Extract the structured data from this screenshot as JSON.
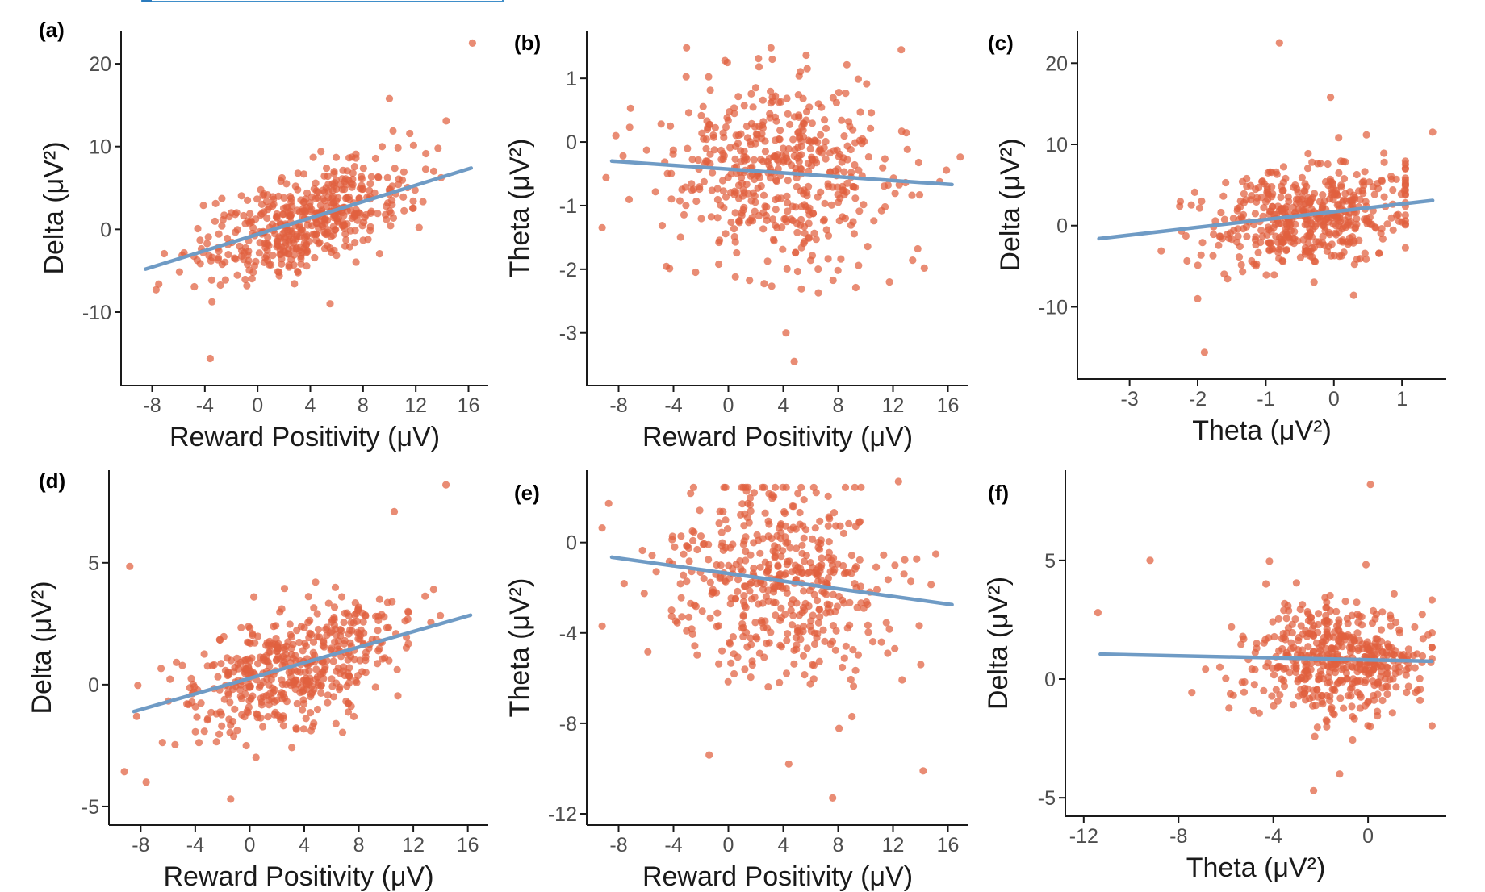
{
  "figure": {
    "colors": {
      "points": "#e0603e",
      "fit_line": "#6f9bc5",
      "axis": "#1a1a1a",
      "header_accent": "#2b7bbd"
    },
    "header_fragment": "cropped banner at top-left (text not legible)"
  },
  "chart_data": [
    {
      "panel_label": "(a)",
      "type": "scatter",
      "xlabel": "Reward Positivity (μV)",
      "ylabel": "Delta (μV²)",
      "xlim": [
        -9.5,
        17.5
      ],
      "ylim": [
        -17.5,
        24
      ],
      "xticks": [
        -8,
        -4,
        0,
        4,
        8,
        12,
        16
      ],
      "xticklabels": [
        "-8",
        "-4",
        "0",
        "4",
        "8",
        "12",
        "16"
      ],
      "yticks": [
        -10,
        0,
        10,
        20
      ],
      "yticklabels": [
        "-10",
        "0",
        "10",
        "20"
      ],
      "grid": false,
      "fit_line": {
        "x": [
          -8.5,
          16.2
        ],
        "y": [
          -4.8,
          7.4
        ]
      },
      "points_summary": {
        "n": 480,
        "x_mean": 3.5,
        "x_sd": 4.0,
        "y_intercept": -0.55,
        "slope": 0.48,
        "residual_sd": 2.8
      },
      "outliers": [
        {
          "x": 16.3,
          "y": 22.5
        },
        {
          "x": -3.6,
          "y": -15.6
        },
        {
          "x": 10.0,
          "y": 15.8
        },
        {
          "x": 5.5,
          "y": -9.0
        },
        {
          "x": -7.7,
          "y": -7.3
        }
      ]
    },
    {
      "panel_label": "(b)",
      "type": "scatter",
      "xlabel": "Reward Positivity (μV)",
      "ylabel": "Theta (μV²)",
      "xlim": [
        -9.5,
        17.5
      ],
      "ylim": [
        -3.65,
        1.75
      ],
      "xticks": [
        -8,
        -4,
        0,
        4,
        8,
        12,
        16
      ],
      "xticklabels": [
        "-8",
        "-4",
        "0",
        "4",
        "8",
        "12",
        "16"
      ],
      "yticks": [
        -3,
        -2,
        -1,
        0,
        1
      ],
      "yticklabels": [
        "-3",
        "-2",
        "-1",
        "0",
        "1"
      ],
      "grid": false,
      "fit_line": {
        "x": [
          -8.5,
          16.3
        ],
        "y": [
          -0.3,
          -0.67
        ]
      },
      "points_summary": {
        "n": 480,
        "x_mean": 3.8,
        "x_sd": 4.2,
        "y_intercept": -0.42,
        "slope": -0.015,
        "residual_sd": 0.75
      },
      "outliers": [
        {
          "x": 3.2,
          "y": 1.3
        },
        {
          "x": 12.6,
          "y": 1.45
        },
        {
          "x": 4.8,
          "y": -3.45
        },
        {
          "x": 4.2,
          "y": -3.0
        },
        {
          "x": -8.2,
          "y": 0.1
        }
      ]
    },
    {
      "panel_label": "(c)",
      "type": "scatter",
      "xlabel": "Theta (μV²)",
      "ylabel": "Delta (μV²)",
      "xlim": [
        -3.6,
        1.65
      ],
      "ylim": [
        -17.5,
        24
      ],
      "xticks": [
        -3,
        -2,
        -1,
        0,
        1
      ],
      "xticklabels": [
        "-3",
        "-2",
        "-1",
        "0",
        "1"
      ],
      "yticks": [
        -10,
        0,
        10,
        20
      ],
      "yticklabels": [
        "-10",
        "0",
        "10",
        "20"
      ],
      "grid": false,
      "fit_line": {
        "x": [
          -3.45,
          1.45
        ],
        "y": [
          -1.6,
          3.1
        ]
      },
      "points_summary": {
        "n": 480,
        "x_mean": -0.4,
        "x_sd": 0.75,
        "y_intercept": 1.6,
        "slope": 0.95,
        "residual_sd": 3.1
      },
      "outliers": [
        {
          "x": -0.8,
          "y": 22.5
        },
        {
          "x": -1.9,
          "y": -15.6
        },
        {
          "x": -0.05,
          "y": 15.8
        },
        {
          "x": -2.0,
          "y": -9.0
        },
        {
          "x": 1.45,
          "y": 11.5
        }
      ]
    },
    {
      "panel_label": "(d)",
      "type": "scatter",
      "xlabel": "Reward Positivity (μV)",
      "ylabel": "Delta (μV²)",
      "xlim": [
        -9.5,
        17.5
      ],
      "ylim": [
        -5.3,
        8.8
      ],
      "xticks": [
        -8,
        -4,
        0,
        4,
        8,
        12,
        16
      ],
      "xticklabels": [
        "-8",
        "-4",
        "0",
        "4",
        "8",
        "12",
        "16"
      ],
      "yticks": [
        -5,
        0,
        5
      ],
      "yticklabels": [
        "-5",
        "0",
        "5"
      ],
      "grid": false,
      "fit_line": {
        "x": [
          -8.5,
          16.2
        ],
        "y": [
          -1.1,
          2.85
        ]
      },
      "points_summary": {
        "n": 480,
        "x_mean": 3.5,
        "x_sd": 4.0,
        "y_intercept": 0.25,
        "slope": 0.16,
        "residual_sd": 1.25
      },
      "outliers": [
        {
          "x": 14.4,
          "y": 8.2
        },
        {
          "x": -1.4,
          "y": -4.7
        },
        {
          "x": -7.6,
          "y": -4.0
        },
        {
          "x": -8.8,
          "y": 4.85
        },
        {
          "x": 10.6,
          "y": 7.1
        }
      ]
    },
    {
      "panel_label": "(e)",
      "type": "scatter",
      "xlabel": "Reward Positivity (μV)",
      "ylabel": "Theta (μV²)",
      "xlim": [
        -9.5,
        17.5
      ],
      "ylim": [
        -12,
        3.2
      ],
      "xticks": [
        -8,
        -4,
        0,
        4,
        8,
        12,
        16
      ],
      "xticklabels": [
        "-8",
        "-4",
        "0",
        "4",
        "8",
        "12",
        "16"
      ],
      "yticks": [
        -12,
        -8,
        -4,
        0
      ],
      "yticklabels": [
        "-12",
        "-8",
        "-4",
        "0"
      ],
      "grid": false,
      "fit_line": {
        "x": [
          -8.5,
          16.3
        ],
        "y": [
          -0.65,
          -2.75
        ]
      },
      "points_summary": {
        "n": 480,
        "x_mean": 3.8,
        "x_sd": 4.2,
        "y_intercept": -1.4,
        "slope": -0.085,
        "residual_sd": 2.2
      },
      "outliers": [
        {
          "x": 7.6,
          "y": -11.3
        },
        {
          "x": 4.4,
          "y": -9.8
        },
        {
          "x": 14.2,
          "y": -10.1
        },
        {
          "x": -1.4,
          "y": -9.4
        },
        {
          "x": 12.4,
          "y": 2.7
        }
      ]
    },
    {
      "panel_label": "(f)",
      "type": "scatter",
      "xlabel": "Theta (μV²)",
      "ylabel": "Delta (μV²)",
      "xlim": [
        -12.3,
        3.3
      ],
      "ylim": [
        -5.3,
        8.8
      ],
      "xticks": [
        -12,
        -8,
        -4,
        0
      ],
      "xticklabels": [
        "-12",
        "-8",
        "-4",
        "0"
      ],
      "yticks": [
        -5,
        0,
        5
      ],
      "yticklabels": [
        "-5",
        "0",
        "5"
      ],
      "grid": false,
      "fit_line": {
        "x": [
          -11.3,
          2.7
        ],
        "y": [
          1.05,
          0.75
        ]
      },
      "points_summary": {
        "n": 480,
        "x_mean": -1.3,
        "x_sd": 1.9,
        "y_intercept": 0.8,
        "slope": -0.02,
        "residual_sd": 1.2
      },
      "outliers": [
        {
          "x": 0.1,
          "y": 8.2
        },
        {
          "x": -11.4,
          "y": 2.8
        },
        {
          "x": -9.2,
          "y": 5.0
        },
        {
          "x": -1.2,
          "y": -4.0
        },
        {
          "x": -2.3,
          "y": -4.7
        }
      ]
    }
  ]
}
